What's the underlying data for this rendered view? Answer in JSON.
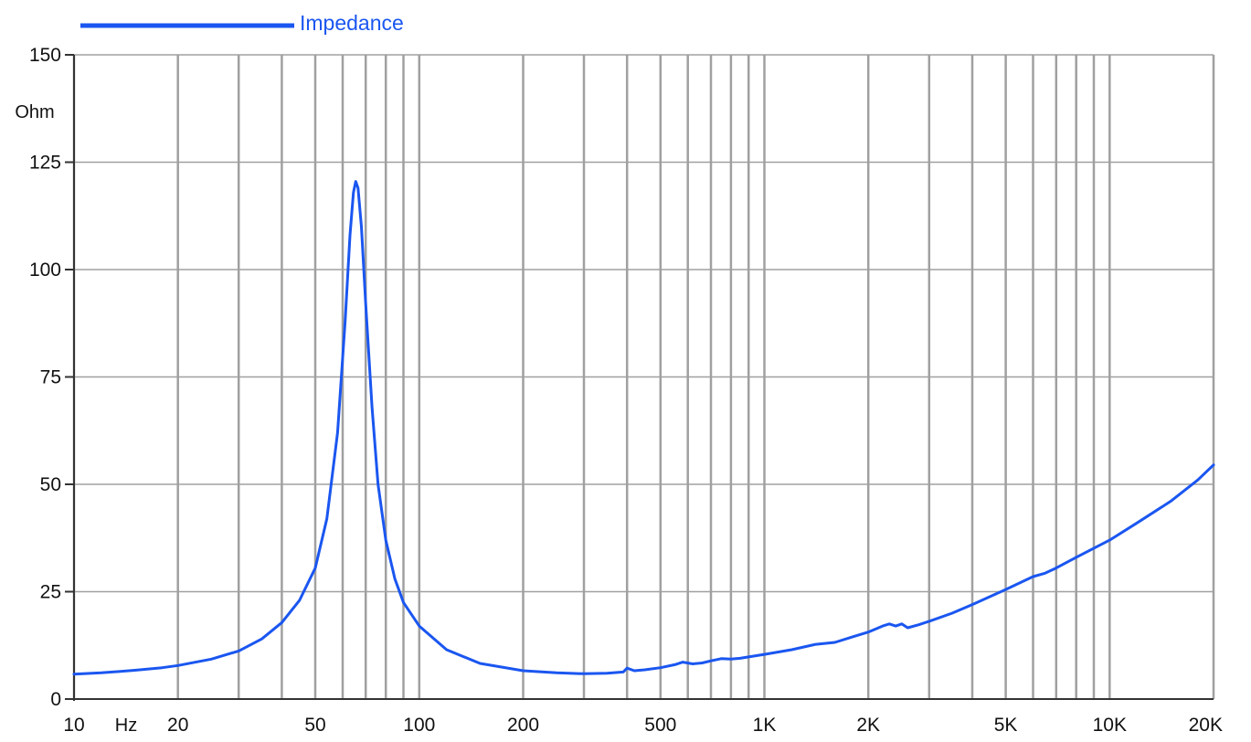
{
  "chart_data": {
    "type": "line",
    "xscale": "log",
    "xlim": [
      10,
      20000
    ],
    "ylim": [
      0,
      150
    ],
    "grid": true,
    "legend_position": "top-left",
    "xlabel": "Hz",
    "ylabel": "Ohm",
    "x_tick_labels": [
      {
        "value": 10,
        "label": "10"
      },
      {
        "value": 20,
        "label": "20"
      },
      {
        "value": 50,
        "label": "50"
      },
      {
        "value": 100,
        "label": "100"
      },
      {
        "value": 200,
        "label": "200"
      },
      {
        "value": 500,
        "label": "500"
      },
      {
        "value": 1000,
        "label": "1K"
      },
      {
        "value": 2000,
        "label": "2K"
      },
      {
        "value": 5000,
        "label": "5K"
      },
      {
        "value": 10000,
        "label": "10K"
      },
      {
        "value": 20000,
        "label": "20K"
      }
    ],
    "x_gridlines": [
      10,
      20,
      30,
      40,
      50,
      60,
      70,
      80,
      90,
      100,
      200,
      300,
      400,
      500,
      600,
      700,
      800,
      900,
      1000,
      2000,
      3000,
      4000,
      5000,
      6000,
      7000,
      8000,
      9000,
      10000,
      20000
    ],
    "y_ticks": [
      0,
      25,
      50,
      75,
      100,
      125,
      150
    ],
    "colors": {
      "line": "#1a56f0",
      "grid": "#a0a0a0",
      "axis": "#333333"
    },
    "series": [
      {
        "name": "Impedance",
        "x": [
          10,
          12,
          15,
          18,
          20,
          25,
          30,
          35,
          40,
          45,
          50,
          54,
          58,
          61,
          63,
          64.5,
          65.5,
          66.5,
          68,
          70,
          73,
          76,
          80,
          85,
          90,
          100,
          120,
          150,
          200,
          250,
          300,
          350,
          390,
          400,
          420,
          450,
          500,
          550,
          580,
          620,
          660,
          700,
          750,
          800,
          850,
          900,
          1000,
          1200,
          1400,
          1600,
          1800,
          2000,
          2200,
          2300,
          2400,
          2500,
          2600,
          2800,
          3000,
          3500,
          4000,
          5000,
          6000,
          6500,
          7000,
          8000,
          10000,
          12000,
          15000,
          18000,
          20000
        ],
        "values": [
          5.8,
          6.1,
          6.7,
          7.3,
          7.8,
          9.3,
          11.2,
          14.0,
          17.8,
          23.0,
          30.5,
          42.0,
          62.0,
          88.0,
          108.0,
          118.0,
          120.5,
          119.0,
          110.0,
          92.0,
          68.0,
          50.0,
          37.0,
          28.0,
          22.5,
          17.0,
          11.5,
          8.3,
          6.6,
          6.1,
          5.9,
          6.0,
          6.3,
          7.2,
          6.6,
          6.8,
          7.3,
          8.0,
          8.6,
          8.2,
          8.4,
          8.9,
          9.4,
          9.3,
          9.5,
          9.8,
          10.4,
          11.5,
          12.7,
          13.2,
          14.5,
          15.6,
          17.0,
          17.5,
          17.0,
          17.5,
          16.6,
          17.3,
          18.1,
          20.0,
          22.0,
          25.5,
          28.5,
          29.3,
          30.5,
          33.0,
          37.0,
          41.0,
          46.0,
          51.0,
          54.5
        ]
      }
    ]
  }
}
